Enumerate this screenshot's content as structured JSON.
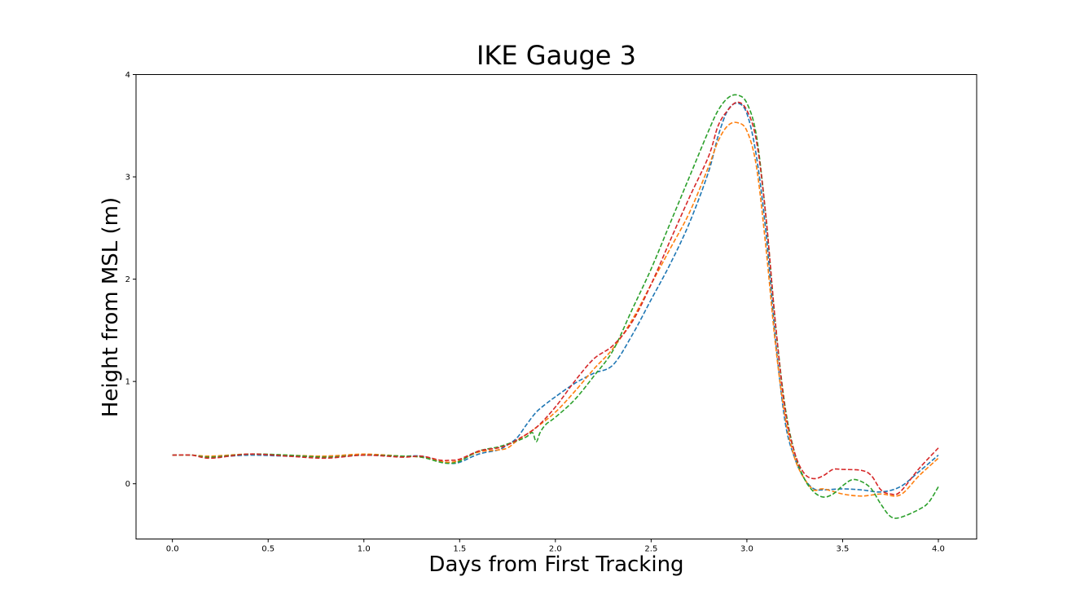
{
  "chart_data": {
    "type": "line",
    "title": "IKE Gauge 3",
    "xlabel": "Days from First Tracking",
    "ylabel": "Height from MSL (m)",
    "xlim": [
      -0.19,
      4.2
    ],
    "ylim": [
      -0.54,
      4.0
    ],
    "xticks": [
      0.0,
      0.5,
      1.0,
      1.5,
      2.0,
      2.5,
      3.0,
      3.5,
      4.0
    ],
    "xtick_labels": [
      "0.0",
      "0.5",
      "1.0",
      "1.5",
      "2.0",
      "2.5",
      "3.0",
      "3.5",
      "4.0"
    ],
    "yticks": [
      0,
      1,
      2,
      3,
      4
    ],
    "ytick_labels": [
      "0",
      "1",
      "2",
      "3",
      "4"
    ],
    "grid": false,
    "legend": "none",
    "series": [
      {
        "color": "#1f77b4",
        "x": [
          0.0,
          0.1,
          0.2,
          0.4,
          0.6,
          0.8,
          1.0,
          1.2,
          1.3,
          1.4,
          1.45,
          1.5,
          1.6,
          1.7,
          1.75,
          1.8,
          1.85,
          1.9,
          1.95,
          2.0,
          2.1,
          2.2,
          2.3,
          2.4,
          2.5,
          2.6,
          2.7,
          2.8,
          2.85,
          2.9,
          2.95,
          3.0,
          3.05,
          3.1,
          3.15,
          3.2,
          3.25,
          3.3,
          3.35,
          3.4,
          3.5,
          3.6,
          3.7,
          3.8,
          3.9,
          4.0
        ],
        "y": [
          0.28,
          0.28,
          0.26,
          0.28,
          0.27,
          0.27,
          0.28,
          0.27,
          0.27,
          0.22,
          0.2,
          0.21,
          0.29,
          0.33,
          0.38,
          0.45,
          0.58,
          0.7,
          0.78,
          0.85,
          0.98,
          1.08,
          1.16,
          1.45,
          1.8,
          2.15,
          2.55,
          3.05,
          3.4,
          3.65,
          3.72,
          3.62,
          3.2,
          2.45,
          1.4,
          0.6,
          0.25,
          0.05,
          -0.05,
          -0.06,
          -0.05,
          -0.06,
          -0.08,
          -0.03,
          0.12,
          0.28
        ]
      },
      {
        "color": "#ff7f0e",
        "x": [
          0.0,
          0.1,
          0.2,
          0.4,
          0.6,
          0.8,
          1.0,
          1.2,
          1.3,
          1.4,
          1.45,
          1.5,
          1.6,
          1.7,
          1.75,
          1.8,
          1.9,
          2.0,
          2.1,
          2.2,
          2.3,
          2.4,
          2.5,
          2.6,
          2.7,
          2.8,
          2.85,
          2.9,
          2.95,
          3.0,
          3.05,
          3.1,
          3.15,
          3.2,
          3.25,
          3.3,
          3.35,
          3.4,
          3.5,
          3.6,
          3.7,
          3.8,
          3.9,
          4.0
        ],
        "y": [
          0.28,
          0.28,
          0.27,
          0.29,
          0.28,
          0.27,
          0.29,
          0.27,
          0.26,
          0.22,
          0.21,
          0.23,
          0.31,
          0.33,
          0.35,
          0.42,
          0.55,
          0.7,
          0.9,
          1.12,
          1.32,
          1.6,
          1.95,
          2.3,
          2.65,
          3.1,
          3.35,
          3.5,
          3.53,
          3.45,
          3.1,
          2.3,
          1.35,
          0.65,
          0.25,
          0.05,
          -0.06,
          -0.05,
          -0.1,
          -0.12,
          -0.1,
          -0.11,
          0.08,
          0.25
        ]
      },
      {
        "color": "#2ca02c",
        "x": [
          0.0,
          0.1,
          0.2,
          0.4,
          0.6,
          0.8,
          1.0,
          1.2,
          1.3,
          1.4,
          1.45,
          1.5,
          1.6,
          1.7,
          1.8,
          1.85,
          1.88,
          1.9,
          1.92,
          1.95,
          2.0,
          2.1,
          2.2,
          2.3,
          2.4,
          2.5,
          2.6,
          2.7,
          2.8,
          2.85,
          2.9,
          2.95,
          3.0,
          3.05,
          3.1,
          3.15,
          3.2,
          3.25,
          3.3,
          3.35,
          3.4,
          3.45,
          3.5,
          3.55,
          3.6,
          3.65,
          3.7,
          3.75,
          3.8,
          3.9,
          3.95,
          4.0
        ],
        "y": [
          0.28,
          0.28,
          0.26,
          0.29,
          0.28,
          0.26,
          0.28,
          0.27,
          0.26,
          0.21,
          0.2,
          0.22,
          0.32,
          0.36,
          0.42,
          0.46,
          0.5,
          0.41,
          0.5,
          0.58,
          0.65,
          0.82,
          1.05,
          1.3,
          1.7,
          2.1,
          2.55,
          3.0,
          3.45,
          3.65,
          3.77,
          3.8,
          3.72,
          3.4,
          2.6,
          1.55,
          0.75,
          0.3,
          0.05,
          -0.08,
          -0.13,
          -0.1,
          -0.02,
          0.04,
          0.02,
          -0.05,
          -0.2,
          -0.32,
          -0.33,
          -0.25,
          -0.18,
          -0.03
        ]
      },
      {
        "color": "#d62728",
        "x": [
          0.0,
          0.1,
          0.2,
          0.4,
          0.6,
          0.8,
          1.0,
          1.2,
          1.3,
          1.4,
          1.45,
          1.5,
          1.6,
          1.7,
          1.75,
          1.8,
          1.9,
          2.0,
          2.1,
          2.2,
          2.3,
          2.4,
          2.5,
          2.6,
          2.7,
          2.8,
          2.85,
          2.9,
          2.95,
          3.0,
          3.05,
          3.1,
          3.15,
          3.2,
          3.25,
          3.3,
          3.35,
          3.4,
          3.45,
          3.5,
          3.6,
          3.65,
          3.7,
          3.75,
          3.8,
          3.9,
          4.0
        ],
        "y": [
          0.28,
          0.28,
          0.25,
          0.29,
          0.27,
          0.25,
          0.28,
          0.26,
          0.27,
          0.23,
          0.23,
          0.24,
          0.32,
          0.35,
          0.38,
          0.43,
          0.55,
          0.75,
          1.0,
          1.22,
          1.35,
          1.58,
          1.95,
          2.38,
          2.8,
          3.2,
          3.5,
          3.65,
          3.73,
          3.65,
          3.35,
          2.6,
          1.55,
          0.72,
          0.3,
          0.1,
          0.05,
          0.08,
          0.14,
          0.14,
          0.13,
          0.08,
          -0.06,
          -0.1,
          -0.08,
          0.15,
          0.35
        ]
      }
    ]
  }
}
